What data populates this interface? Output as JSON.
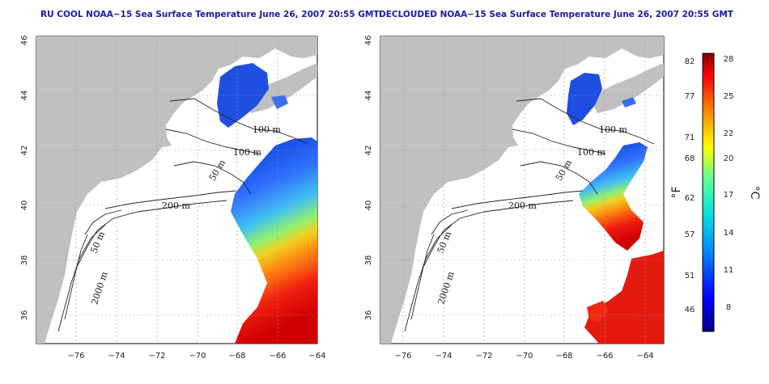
{
  "maps": [
    {
      "title": "RU COOL NOAA−15 Sea Surface Temperature June 26, 2007 20:55 GMT"
    },
    {
      "title": "DECLOUDED NOAA−15 Sea Surface Temperature June 26, 2007 20:55 GMT"
    }
  ],
  "axes": {
    "x_ticks": [
      "−76",
      "−74",
      "−72",
      "−70",
      "−68",
      "−66",
      "−64"
    ],
    "y_ticks": [
      "46",
      "44",
      "42",
      "40",
      "38",
      "36"
    ]
  },
  "contour_labels": [
    "100 m",
    "100 m",
    "50 m",
    "200 m",
    "50 m",
    "2000 m"
  ],
  "colorbar": {
    "fahrenheit_ticks": [
      "82",
      "77",
      "71",
      "68",
      "62",
      "57",
      "51",
      "46"
    ],
    "celsius_ticks": [
      "28",
      "25",
      "22",
      "20",
      "17",
      "14",
      "11",
      "8"
    ],
    "unit_f": "°F",
    "unit_c": "°C"
  },
  "colors": {
    "land": "#c0c0c0",
    "water": "#ffffff",
    "title": "#1a1aa6"
  }
}
